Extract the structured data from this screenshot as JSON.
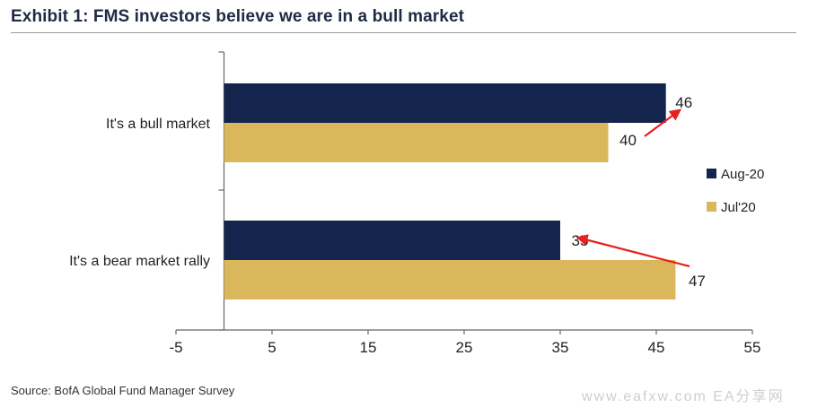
{
  "title": "Exhibit 1: FMS investors believe we are in a bull market",
  "source": "Source: BofA Global Fund Manager Survey",
  "watermark": "www.eafxw.com  EA分享网",
  "colors": {
    "aug": "#14254d",
    "jul": "#dab75a",
    "arrow": "#e8201f",
    "axis": "#666666"
  },
  "chart_data": {
    "type": "bar",
    "orientation": "horizontal",
    "title": "Exhibit 1: FMS investors believe we are in a bull market",
    "categories": [
      "It's a bull market",
      "It's a bear market rally"
    ],
    "series": [
      {
        "name": "Aug-20",
        "values": [
          46,
          35
        ]
      },
      {
        "name": "Jul'20",
        "values": [
          40,
          47
        ]
      }
    ],
    "xlim": [
      -5,
      55
    ],
    "xticks": [
      -5,
      5,
      15,
      25,
      35,
      45,
      55
    ],
    "legend_position": "right",
    "grid": false,
    "annotations": "red arrows pointing from Jul'20 value to Aug-20 value"
  }
}
